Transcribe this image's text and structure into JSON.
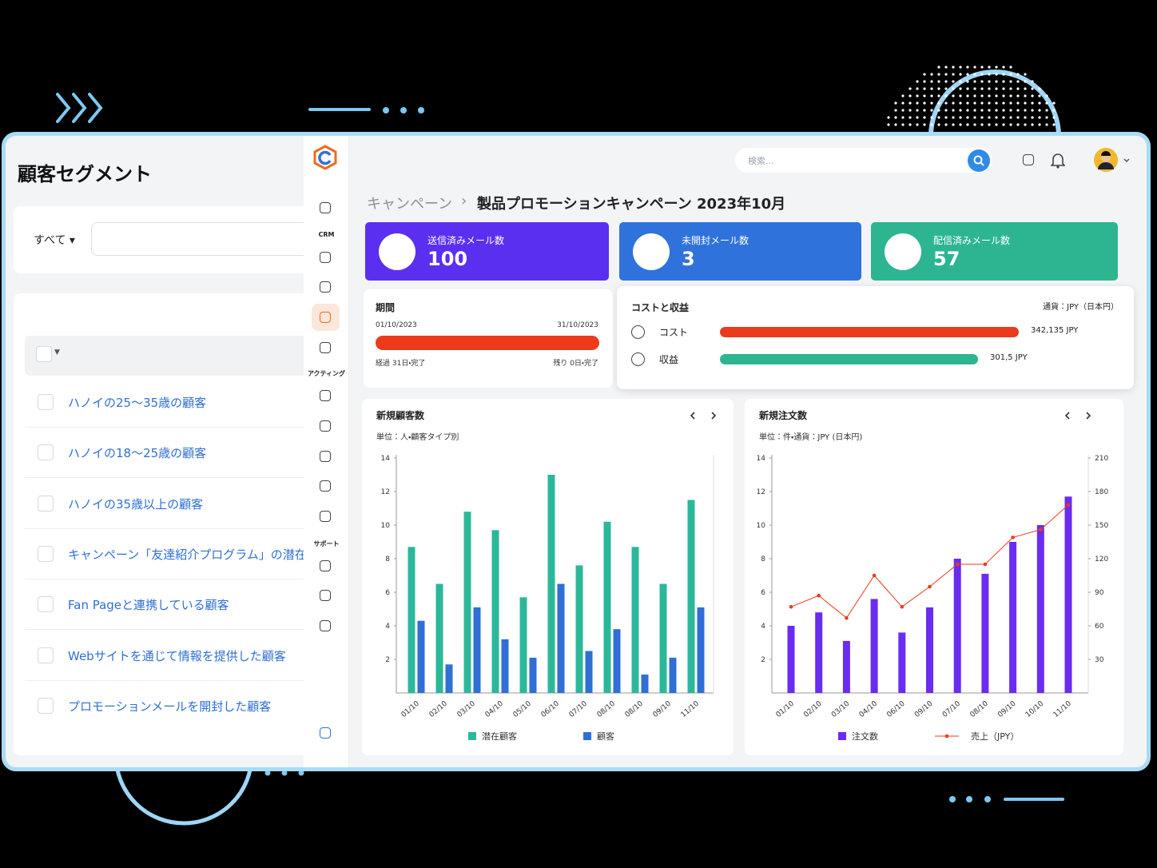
{
  "segments": {
    "title": "顧客セグメント",
    "filter": "すべて",
    "items": [
      "ハノイの25〜35歳の顧客",
      "ハノイの18〜25歳の顧客",
      "ハノイの35歳以上の顧客",
      "キャンペーン「友達紹介プログラム」の潜在顧客",
      "Fan Pageと連携している顧客",
      "Webサイトを通じて情報を提供した顧客",
      "プロモーションメールを開封した顧客"
    ]
  },
  "sidebar": {
    "sections": [
      "CRM",
      "アクティング",
      "サポート"
    ]
  },
  "header": {
    "search_placeholder": "検索...",
    "breadcrumb": [
      "キャンペーン",
      "製品プロモーションキャンペーン 2023年10月"
    ]
  },
  "stats": [
    {
      "label": "送信済みメール数",
      "value": 100,
      "color": "#5b2ff0"
    },
    {
      "label": "未開封メール数",
      "value": 3,
      "color": "#2f72dc"
    },
    {
      "label": "配信済みメール数",
      "value": 57,
      "color": "#2db592"
    }
  ],
  "period": {
    "title": "期間",
    "start": "01/10/2023",
    "end": "31/10/2023",
    "elapsed": "経過 31日・完了",
    "remaining": "残り 0日・完了"
  },
  "cost": {
    "title": "コストと収益",
    "currency": "通貨：JPY（日本円）",
    "rows": [
      {
        "label": "コスト",
        "value": "342,135 JPY",
        "color": "#ec3a1c"
      },
      {
        "label": "収益",
        "value": "301,5 JPY",
        "color": "#2db592"
      }
    ]
  },
  "chart_data": [
    {
      "type": "bar",
      "title": "新規顧客数",
      "subtitle": "単位：人・顧客タイプ別",
      "categories": [
        "01/10",
        "02/10",
        "03/10",
        "04/10",
        "05/10",
        "06/10",
        "07/10",
        "08/10",
        "08/10",
        "09/10",
        "11/10"
      ],
      "series": [
        {
          "name": "潜在顧客",
          "color": "#2bb89a",
          "values": [
            8.7,
            6.5,
            10.8,
            9.7,
            5.7,
            13,
            7.6,
            10.2,
            8.7,
            6.5,
            11.5
          ]
        },
        {
          "name": "顧客",
          "color": "#2f6fd6",
          "values": [
            4.3,
            1.7,
            5.1,
            3.2,
            2.1,
            6.5,
            2.5,
            3.8,
            1.1,
            2.1,
            5.1
          ]
        }
      ],
      "ylim": [
        0,
        14
      ],
      "yticks": [
        2,
        4,
        6,
        8,
        10,
        12,
        14
      ],
      "grid": false
    },
    {
      "type": "bar-line",
      "title": "新規注文数",
      "subtitle": "単位：件・通貨：JPY (日本円)",
      "categories": [
        "01/10",
        "02/10",
        "03/10",
        "04/10",
        "06/10",
        "09/10",
        "07/10",
        "08/10",
        "09/10",
        "10/10",
        "11/10"
      ],
      "series": [
        {
          "name": "注文数",
          "color": "#6a2cf0",
          "values": [
            4,
            4.8,
            3.1,
            5.6,
            3.6,
            5.1,
            8,
            7.1,
            9,
            10,
            11.7
          ]
        },
        {
          "name": "売上（JPY）",
          "color": "#ec3a1c",
          "axis": "y2",
          "values": [
            77,
            87,
            67,
            105,
            77,
            95,
            115,
            115,
            139,
            146,
            168
          ]
        }
      ],
      "ylim": [
        0,
        14
      ],
      "yticks": [
        2,
        4,
        6,
        8,
        10,
        12,
        14
      ],
      "y2lim": [
        0,
        210
      ],
      "y2ticks": [
        30,
        60,
        90,
        120,
        150,
        180,
        210
      ],
      "grid": false
    }
  ]
}
